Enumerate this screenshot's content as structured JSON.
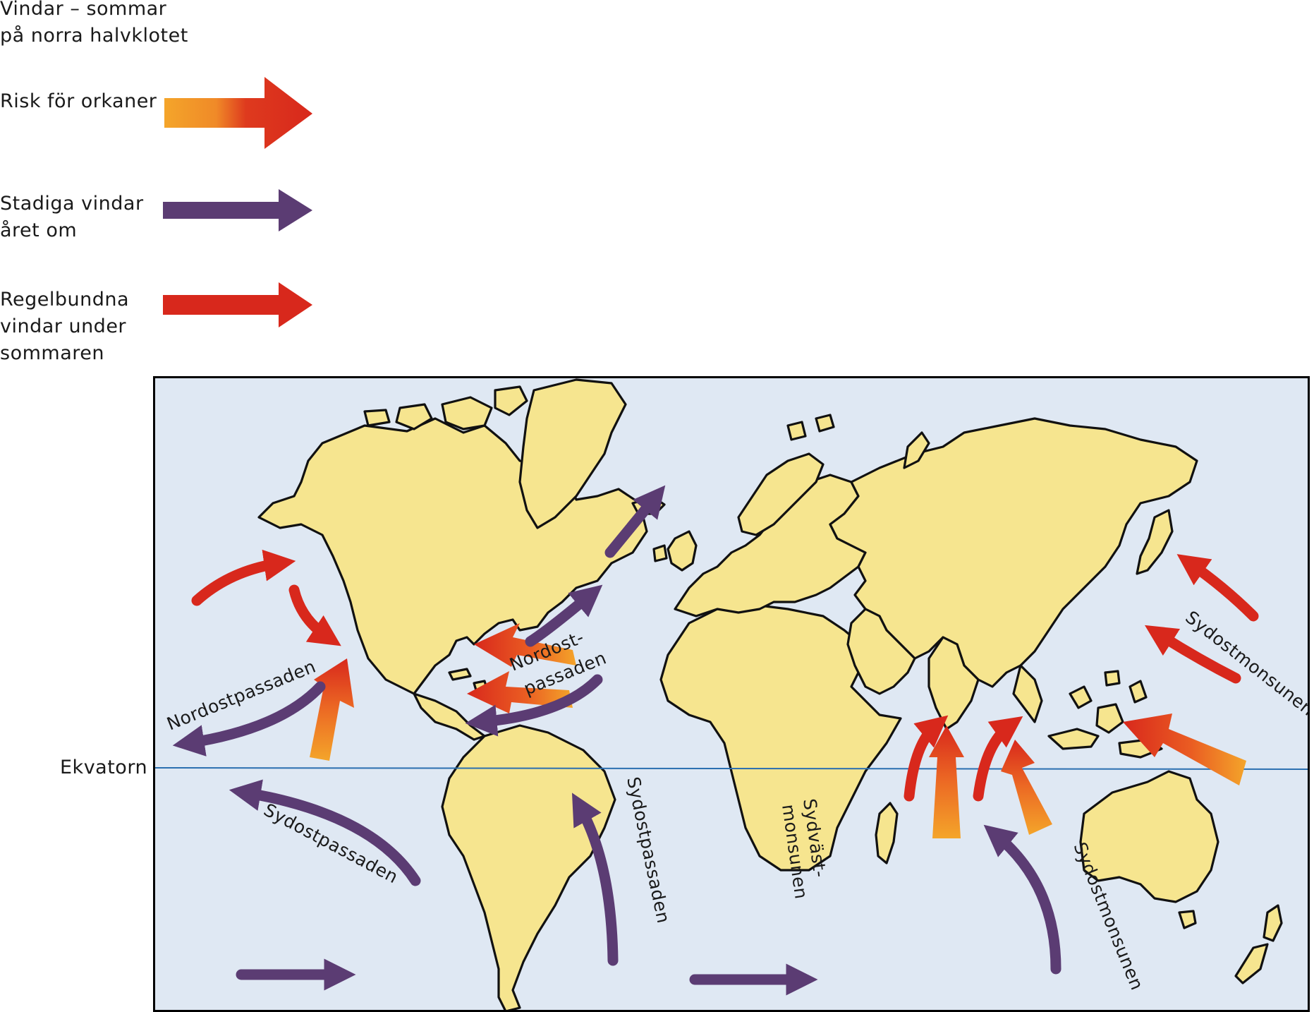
{
  "legend": {
    "title_line1": "Vindar – sommar",
    "title_line2": "på norra halvklotet",
    "items": [
      {
        "line1": "Risk för orkaner",
        "line2": "",
        "line3": "",
        "arrow": "gradient-orange-red"
      },
      {
        "line1": "Stadiga vindar",
        "line2": "året om",
        "line3": "",
        "arrow": "purple"
      },
      {
        "line1": "Regelbundna",
        "line2": "vindar under",
        "line3": "sommaren",
        "arrow": "red"
      }
    ]
  },
  "equator_label": "Ekvatorn",
  "map_labels": {
    "nordostpassaden_pacific": "Nordostpassaden",
    "nordost_atlantic_1": "Nordost-",
    "nordost_atlantic_2": "passaden",
    "sydostpassaden_pacific": "Sydostpassaden",
    "sydostpassaden_atlantic": "Sydostpassaden",
    "sydvast_1": "Sydväst-",
    "sydvast_2": "monsunen",
    "sydostmonsunen_indian": "Sydostmonsunen",
    "sydostmonsunen_pacific": "Sydostmonsunen"
  },
  "colors": {
    "ocean": "#dfe8f3",
    "land": "#f6e58f",
    "coastline": "#111111",
    "purple_wind": "#5b3c73",
    "red_wind": "#d8281c",
    "hurricane_start": "#f4a52a",
    "hurricane_end": "#d8281c",
    "equator_line": "#2b6fb0",
    "frame": "#000000"
  }
}
